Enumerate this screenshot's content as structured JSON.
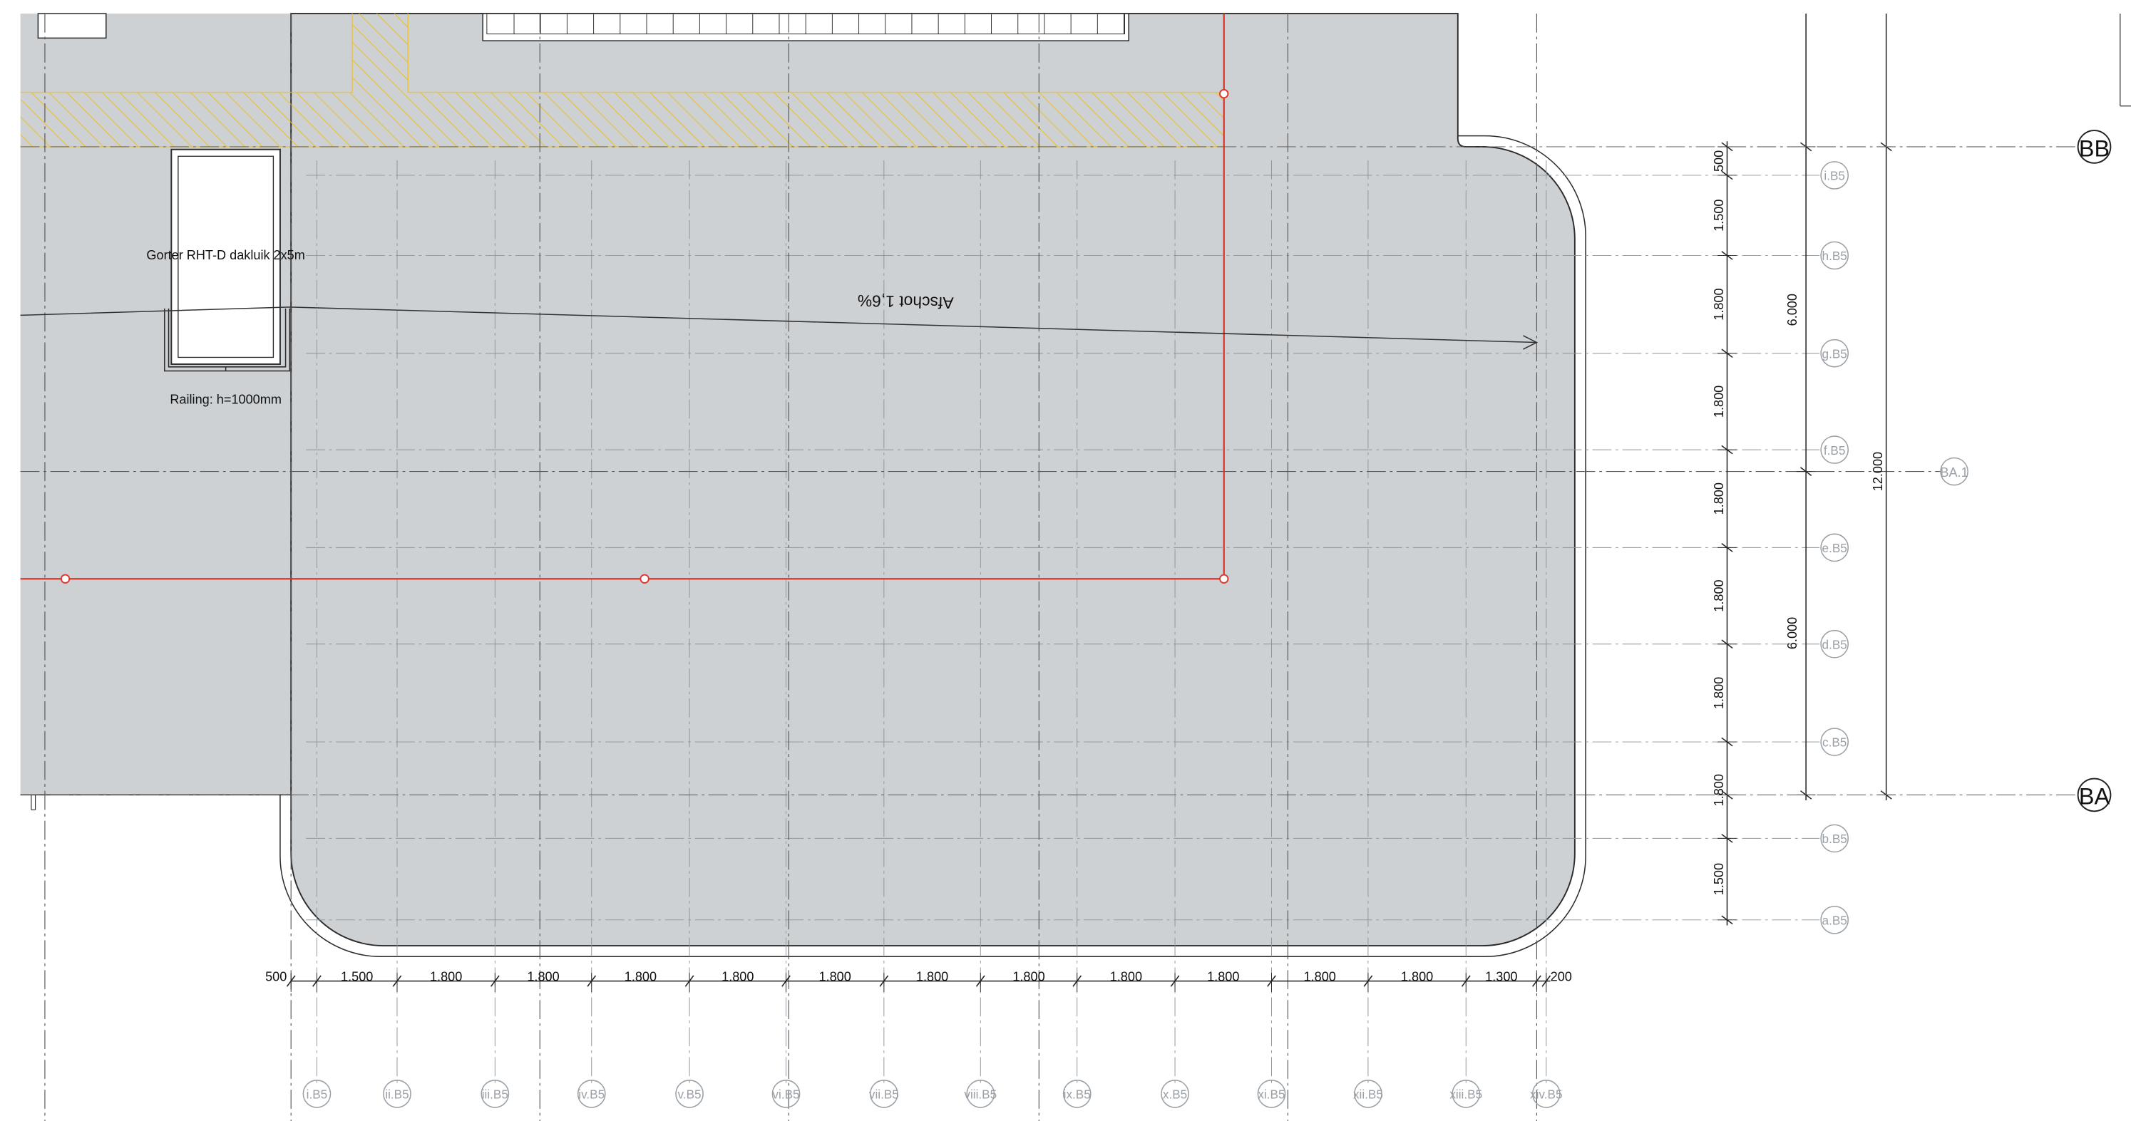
{
  "annotations": {
    "roof_hatch": "Gorter RHT-D dakluik 2x5m",
    "railing": "Railing: h=1000mm",
    "slope": "Afschot 1,6%"
  },
  "grid_axes": {
    "main_top": "BB",
    "main_bottom": "BA",
    "mid": "BA.1"
  },
  "sub_grid_rows": [
    "i.B5",
    "h.B5",
    "g.B5",
    "f.B5",
    "e.B5",
    "d.B5",
    "c.B5",
    "b.B5",
    "a.B5"
  ],
  "sub_grid_cols": [
    "i.B5",
    "ii.B5",
    "iii.B5",
    "iv.B5",
    "v.B5",
    "vi.B5",
    "vii.B5",
    "viii.B5",
    "ix.B5",
    "x.B5",
    "xi.B5",
    "xii.B5",
    "xiii.B5",
    "xiv.B5"
  ],
  "dims_bottom": [
    "500",
    "1.500",
    "1.800",
    "1.800",
    "1.800",
    "1.800",
    "1.800",
    "1.800",
    "1.800",
    "1.800",
    "1.800",
    "1.800",
    "1.800",
    "1.300",
    "200"
  ],
  "dims_right": [
    "500",
    "1.500",
    "1.800",
    "1.800",
    "1.800",
    "1.800",
    "1.800",
    "1.800",
    "1.500"
  ],
  "dims_right_mid": [
    "6.000",
    "6.000"
  ],
  "dims_right_total": "12.000",
  "colors": {
    "roof_fill": "#cdd1d4",
    "red_line": "#e0352b",
    "hatch": "#e6c44a",
    "grid_bubble": "#9aa0a6",
    "ink": "#222222"
  }
}
